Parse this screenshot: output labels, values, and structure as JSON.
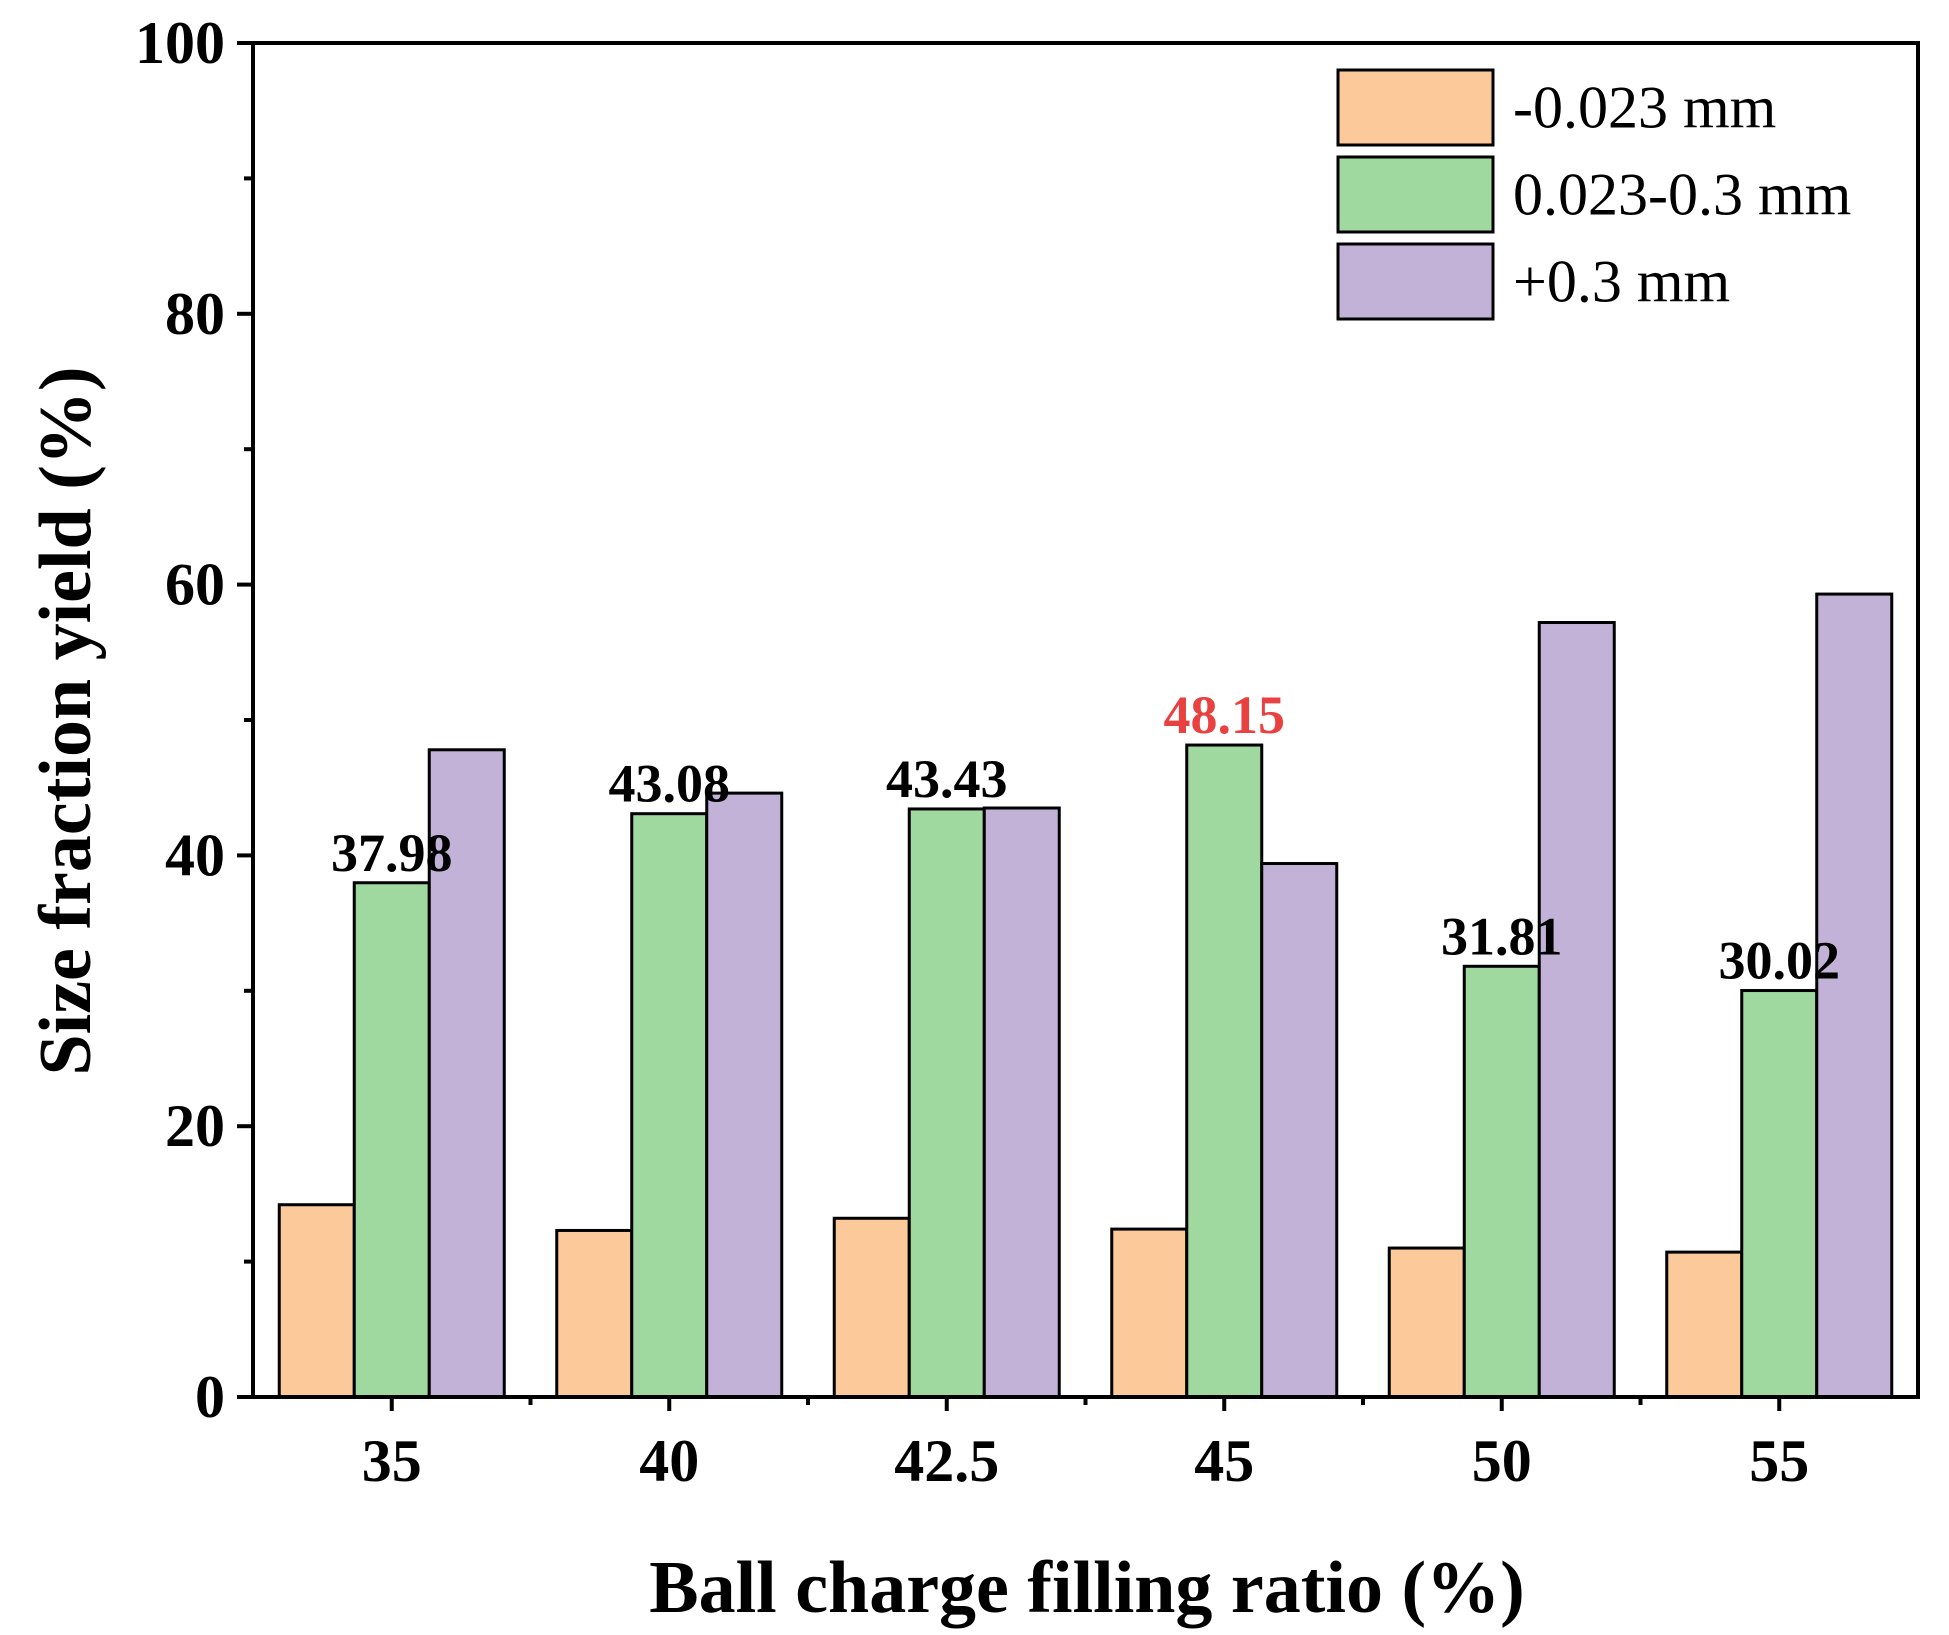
{
  "chart_data": {
    "type": "bar",
    "title": "",
    "xlabel": "Ball charge filling ratio (%)",
    "ylabel": "Size fraction yield (%)",
    "ylim": [
      0,
      100
    ],
    "yticks": [
      "0",
      "20",
      "40",
      "60",
      "80",
      "100"
    ],
    "categories": [
      "35",
      "40",
      "42.5",
      "45",
      "50",
      "55"
    ],
    "series": [
      {
        "name": "-0.023 mm",
        "color": "#FBC99A",
        "values": [
          14.2,
          12.3,
          13.2,
          12.4,
          11.0,
          10.7
        ]
      },
      {
        "name": "0.023-0.3 mm",
        "color": "#9FD99F",
        "values": [
          37.98,
          43.08,
          43.43,
          48.15,
          31.81,
          30.02
        ]
      },
      {
        "name": "+0.3 mm",
        "color": "#C3B2D8",
        "values": [
          47.8,
          44.6,
          43.5,
          39.4,
          57.2,
          59.3
        ]
      }
    ],
    "annotations": [
      {
        "category": "35",
        "text": "37.98",
        "color": "#000000"
      },
      {
        "category": "40",
        "text": "43.08",
        "color": "#000000"
      },
      {
        "category": "42.5",
        "text": "43.43",
        "color": "#000000"
      },
      {
        "category": "45",
        "text": "48.15",
        "color": "#E8413F"
      },
      {
        "category": "50",
        "text": "31.81",
        "color": "#000000"
      },
      {
        "category": "55",
        "text": "30.02",
        "color": "#000000"
      }
    ],
    "legend_position": "top-right",
    "grid": false
  }
}
